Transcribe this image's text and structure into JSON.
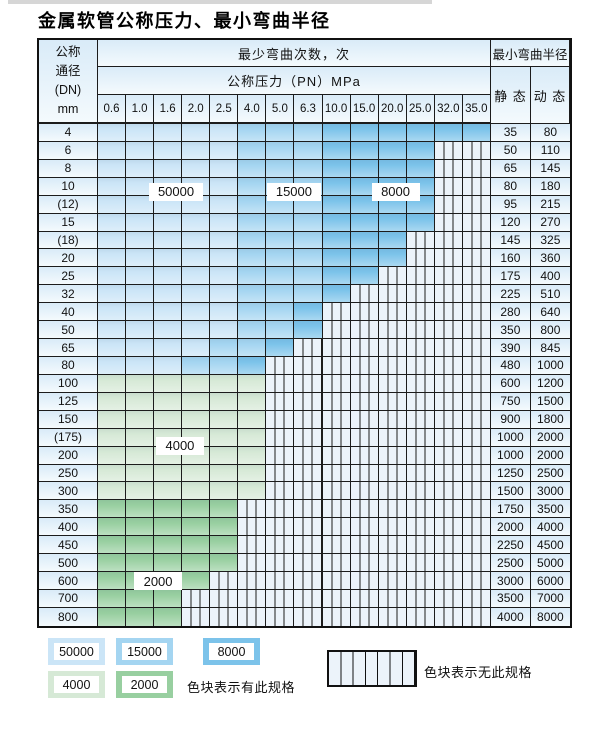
{
  "title": "金属软管公称压力、最小弯曲半径",
  "table": {
    "header": {
      "dn_lines": [
        "公称",
        "通径",
        "(DN)",
        "mm"
      ],
      "cycles_label": "最少弯曲次数，次",
      "pressure_label": "公称压力（PN）MPa",
      "radius_label": "最小弯曲半径",
      "static_label": "静 态",
      "dynamic_label": "动 态",
      "pressures": [
        "0.6",
        "1.0",
        "1.6",
        "2.0",
        "2.5",
        "4.0",
        "5.0",
        "6.3",
        "10.0",
        "15.0",
        "20.0",
        "25.0",
        "32.0",
        "35.0"
      ]
    },
    "rows": [
      {
        "dn": "4",
        "static": "35",
        "dynamic": "80",
        "bands": [
          [
            "c50",
            5
          ],
          [
            "c15",
            3
          ],
          [
            "c8",
            6
          ]
        ]
      },
      {
        "dn": "6",
        "static": "50",
        "dynamic": "110",
        "bands": [
          [
            "c50",
            5
          ],
          [
            "c15",
            3
          ],
          [
            "c8",
            4
          ],
          [
            "x",
            2
          ]
        ]
      },
      {
        "dn": "8",
        "static": "65",
        "dynamic": "145",
        "bands": [
          [
            "c50",
            5
          ],
          [
            "c15",
            3
          ],
          [
            "c8",
            4
          ],
          [
            "x",
            2
          ]
        ]
      },
      {
        "dn": "10",
        "static": "80",
        "dynamic": "180",
        "bands": [
          [
            "c50",
            5
          ],
          [
            "c15",
            3
          ],
          [
            "c8",
            4
          ],
          [
            "x",
            2
          ]
        ]
      },
      {
        "dn": "(12)",
        "static": "95",
        "dynamic": "215",
        "bands": [
          [
            "c50",
            5
          ],
          [
            "c15",
            3
          ],
          [
            "c8",
            4
          ],
          [
            "x",
            2
          ]
        ]
      },
      {
        "dn": "15",
        "static": "120",
        "dynamic": "270",
        "bands": [
          [
            "c50",
            5
          ],
          [
            "c15",
            3
          ],
          [
            "c8",
            4
          ],
          [
            "x",
            2
          ]
        ]
      },
      {
        "dn": "(18)",
        "static": "145",
        "dynamic": "325",
        "bands": [
          [
            "c50",
            5
          ],
          [
            "c15",
            3
          ],
          [
            "c8",
            3
          ],
          [
            "x",
            3
          ]
        ]
      },
      {
        "dn": "20",
        "static": "160",
        "dynamic": "360",
        "bands": [
          [
            "c50",
            5
          ],
          [
            "c15",
            3
          ],
          [
            "c8",
            3
          ],
          [
            "x",
            3
          ]
        ]
      },
      {
        "dn": "25",
        "static": "175",
        "dynamic": "400",
        "bands": [
          [
            "c50",
            5
          ],
          [
            "c15",
            3
          ],
          [
            "c8",
            2
          ],
          [
            "x",
            4
          ]
        ]
      },
      {
        "dn": "32",
        "static": "225",
        "dynamic": "510",
        "bands": [
          [
            "c50",
            5
          ],
          [
            "c15",
            3
          ],
          [
            "c8",
            1
          ],
          [
            "x",
            5
          ]
        ]
      },
      {
        "dn": "40",
        "static": "280",
        "dynamic": "640",
        "bands": [
          [
            "c50",
            5
          ],
          [
            "c15",
            2
          ],
          [
            "c8",
            1
          ],
          [
            "x",
            6
          ]
        ]
      },
      {
        "dn": "50",
        "static": "350",
        "dynamic": "800",
        "bands": [
          [
            "c50",
            5
          ],
          [
            "c15",
            2
          ],
          [
            "c8",
            1
          ],
          [
            "x",
            6
          ]
        ]
      },
      {
        "dn": "65",
        "static": "390",
        "dynamic": "845",
        "bands": [
          [
            "c50",
            4
          ],
          [
            "c15",
            2
          ],
          [
            "c8",
            1
          ],
          [
            "x",
            7
          ]
        ]
      },
      {
        "dn": "80",
        "static": "480",
        "dynamic": "1000",
        "bands": [
          [
            "c50",
            3
          ],
          [
            "c15",
            2
          ],
          [
            "c8",
            1
          ],
          [
            "x",
            8
          ]
        ]
      },
      {
        "dn": "100",
        "static": "600",
        "dynamic": "1200",
        "bands": [
          [
            "c40",
            6
          ],
          [
            "x",
            8
          ]
        ]
      },
      {
        "dn": "125",
        "static": "750",
        "dynamic": "1500",
        "bands": [
          [
            "c40",
            6
          ],
          [
            "x",
            8
          ]
        ]
      },
      {
        "dn": "150",
        "static": "900",
        "dynamic": "1800",
        "bands": [
          [
            "c40",
            6
          ],
          [
            "x",
            8
          ]
        ]
      },
      {
        "dn": "(175)",
        "static": "1000",
        "dynamic": "2000",
        "bands": [
          [
            "c40",
            6
          ],
          [
            "x",
            8
          ]
        ]
      },
      {
        "dn": "200",
        "static": "1000",
        "dynamic": "2000",
        "bands": [
          [
            "c40",
            6
          ],
          [
            "x",
            8
          ]
        ]
      },
      {
        "dn": "250",
        "static": "1250",
        "dynamic": "2500",
        "bands": [
          [
            "c40",
            6
          ],
          [
            "x",
            8
          ]
        ]
      },
      {
        "dn": "300",
        "static": "1500",
        "dynamic": "3000",
        "bands": [
          [
            "c40",
            6
          ],
          [
            "x",
            8
          ]
        ]
      },
      {
        "dn": "350",
        "static": "1750",
        "dynamic": "3500",
        "bands": [
          [
            "c20",
            5
          ],
          [
            "x",
            9
          ]
        ]
      },
      {
        "dn": "400",
        "static": "2000",
        "dynamic": "4000",
        "bands": [
          [
            "c20",
            5
          ],
          [
            "x",
            9
          ]
        ]
      },
      {
        "dn": "450",
        "static": "2250",
        "dynamic": "4500",
        "bands": [
          [
            "c20",
            5
          ],
          [
            "x",
            9
          ]
        ]
      },
      {
        "dn": "500",
        "static": "2500",
        "dynamic": "5000",
        "bands": [
          [
            "c20",
            5
          ],
          [
            "x",
            9
          ]
        ]
      },
      {
        "dn": "600",
        "static": "3000",
        "dynamic": "6000",
        "bands": [
          [
            "c20",
            4
          ],
          [
            "x",
            10
          ]
        ]
      },
      {
        "dn": "700",
        "static": "3500",
        "dynamic": "7000",
        "bands": [
          [
            "c20",
            3
          ],
          [
            "x",
            11
          ]
        ]
      },
      {
        "dn": "800",
        "static": "4000",
        "dynamic": "8000",
        "bands": [
          [
            "c20",
            3
          ],
          [
            "x",
            11
          ]
        ]
      }
    ],
    "overlays": [
      {
        "text": "50000",
        "col": 2.78,
        "row": 3.79
      },
      {
        "text": "15000",
        "col": 6.98,
        "row": 3.79
      },
      {
        "text": "8000",
        "col": 10.6,
        "row": 3.79
      },
      {
        "text": "4000",
        "col": 2.92,
        "row": 17.96
      },
      {
        "text": "2000",
        "col": 2.14,
        "row": 25.5
      }
    ]
  },
  "legend": {
    "swatches": [
      {
        "label": "50000",
        "key": "c50"
      },
      {
        "label": "15000",
        "key": "c15"
      },
      {
        "label": "8000",
        "key": "c8"
      },
      {
        "label": "4000",
        "key": "c40"
      },
      {
        "label": "2000",
        "key": "c20"
      }
    ],
    "has_spec_note": "色块表示有此规格",
    "no_spec_note": "色块表示无此规格"
  },
  "colors": {
    "c50": "#cbe5f7",
    "c15": "#a4d5f1",
    "c8": "#7cc3ea",
    "c40": "#d6e9d6",
    "c20": "#98cfa0",
    "hatch_bg": "#ecf3fa",
    "grid": "#1c1c1c",
    "tint_top": "#d9ebf8",
    "tint_bottom": "#f4fafd"
  }
}
